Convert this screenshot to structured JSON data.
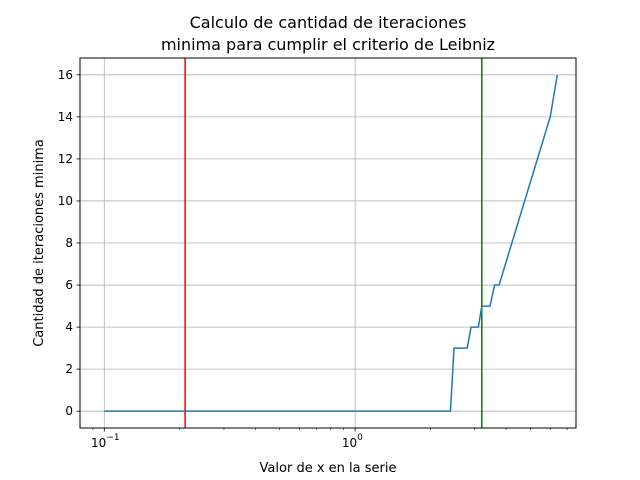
{
  "chart_data": {
    "type": "line",
    "title_lines": [
      "Calculo de cantidad de iteraciones",
      "minima para cumplir el criterio de Leibniz"
    ],
    "xlabel": "Valor de x en la serie",
    "ylabel": "Cantidad de iteraciones minima",
    "xscale": "log",
    "xlim": [
      0.08,
      7.6
    ],
    "ylim": [
      -0.8,
      16.8
    ],
    "grid": true,
    "x_ticks": [
      {
        "value": 0.1,
        "base": "10",
        "exp": "−1"
      },
      {
        "value": 1,
        "base": "10",
        "exp": "0"
      }
    ],
    "y_ticks": [
      0,
      2,
      4,
      6,
      8,
      10,
      12,
      14,
      16
    ],
    "y_tick_labels": [
      "0",
      "2",
      "4",
      "6",
      "8",
      "10",
      "12",
      "14",
      "16"
    ],
    "series": [
      {
        "color": "#1f77b4",
        "x": [
          0.1,
          2.4,
          2.48,
          2.8,
          2.9,
          3.1,
          3.2,
          3.45,
          3.6,
          3.75,
          6.0,
          6.4
        ],
        "y": [
          0,
          0,
          3,
          3,
          4,
          4,
          5,
          5,
          6,
          6,
          14,
          16
        ]
      }
    ],
    "vlines": [
      {
        "x": 0.21,
        "color": "#ff0000"
      },
      {
        "x": 3.2,
        "color": "#008000"
      }
    ]
  }
}
